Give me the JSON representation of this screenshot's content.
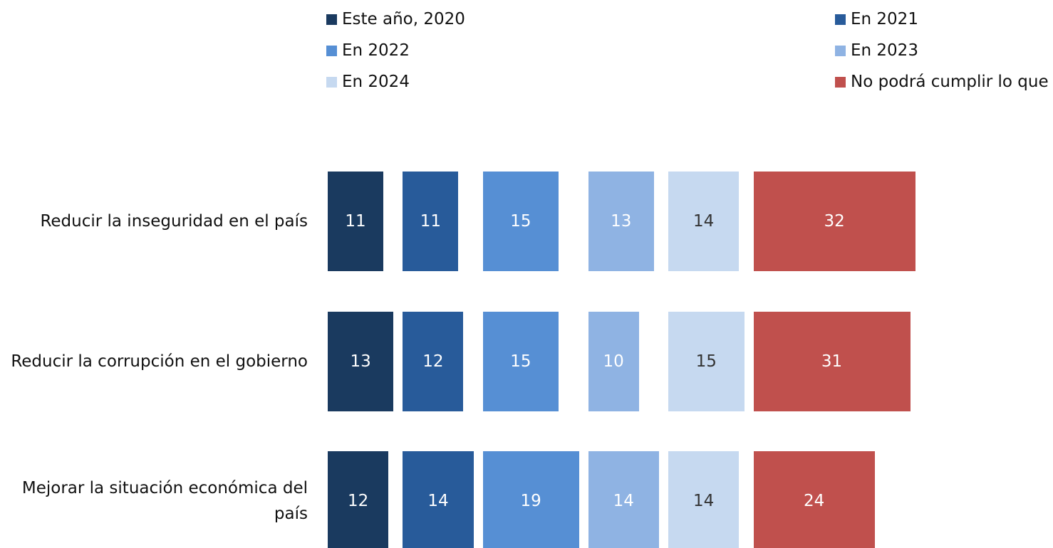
{
  "chart_data": {
    "type": "bar",
    "categories": [
      "Reducir la inseguridad en el país",
      "Reducir la corrupción en el gobierno",
      "Mejorar la situación económica del país"
    ],
    "series": [
      {
        "name": "Este año, 2020",
        "color": "#1a3a5f",
        "values": [
          11,
          13,
          12
        ]
      },
      {
        "name": "En 2021",
        "color": "#285b9a",
        "values": [
          11,
          12,
          14
        ]
      },
      {
        "name": "En 2022",
        "color": "#568fd4",
        "values": [
          15,
          15,
          19
        ]
      },
      {
        "name": "En 2023",
        "color": "#8fb3e3",
        "values": [
          13,
          10,
          14
        ]
      },
      {
        "name": "En 2024",
        "color": "#c6d9f0",
        "values": [
          14,
          15,
          14
        ]
      },
      {
        "name": "No podrá cumplir lo que prometió",
        "color": "#c0504d",
        "values": [
          32,
          31,
          24
        ]
      }
    ]
  }
}
